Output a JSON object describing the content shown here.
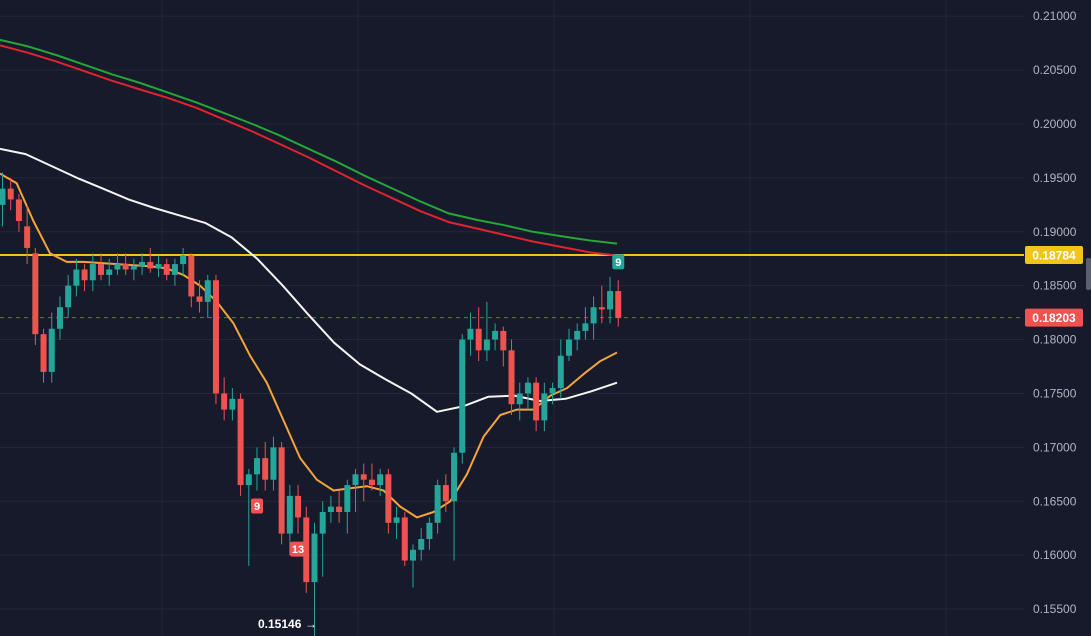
{
  "chart_data": {
    "type": "candlestick",
    "ylim": [
      0.1525,
      0.2115
    ],
    "y_ticks": [
      "0.21000",
      "0.20500",
      "0.20000",
      "0.19500",
      "0.19000",
      "0.18500",
      "0.18000",
      "0.17500",
      "0.17000",
      "0.16500",
      "0.16000",
      "0.15500"
    ],
    "y_tick_values": [
      0.21,
      0.205,
      0.2,
      0.195,
      0.19,
      0.185,
      0.18,
      0.175,
      0.17,
      0.165,
      0.16,
      0.155
    ],
    "grid": true,
    "candles": [
      [
        0.1925,
        0.1955,
        0.1905,
        0.194
      ],
      [
        0.194,
        0.195,
        0.192,
        0.193
      ],
      [
        0.193,
        0.1935,
        0.19,
        0.191
      ],
      [
        0.1905,
        0.1925,
        0.187,
        0.1885
      ],
      [
        0.188,
        0.1885,
        0.1795,
        0.1805
      ],
      [
        0.1805,
        0.181,
        0.176,
        0.177
      ],
      [
        0.177,
        0.1825,
        0.176,
        0.181
      ],
      [
        0.181,
        0.184,
        0.18,
        0.183
      ],
      [
        0.183,
        0.186,
        0.182,
        0.185
      ],
      [
        0.185,
        0.1875,
        0.184,
        0.1865
      ],
      [
        0.1865,
        0.187,
        0.1845,
        0.1855
      ],
      [
        0.1855,
        0.188,
        0.1845,
        0.187
      ],
      [
        0.187,
        0.188,
        0.1855,
        0.186
      ],
      [
        0.186,
        0.1875,
        0.185,
        0.1865
      ],
      [
        0.1865,
        0.188,
        0.186,
        0.187
      ],
      [
        0.187,
        0.188,
        0.186,
        0.1865
      ],
      [
        0.1865,
        0.1875,
        0.1855,
        0.1868
      ],
      [
        0.1868,
        0.188,
        0.186,
        0.1872
      ],
      [
        0.1872,
        0.1885,
        0.1862,
        0.1866
      ],
      [
        0.1866,
        0.1878,
        0.1858,
        0.187
      ],
      [
        0.187,
        0.1875,
        0.1855,
        0.186
      ],
      [
        0.186,
        0.1875,
        0.185,
        0.187
      ],
      [
        0.187,
        0.1885,
        0.186,
        0.1878
      ],
      [
        0.1878,
        0.188,
        0.183,
        0.184
      ],
      [
        0.184,
        0.1855,
        0.1825,
        0.1835
      ],
      [
        0.1835,
        0.186,
        0.182,
        0.1855
      ],
      [
        0.1855,
        0.186,
        0.174,
        0.175
      ],
      [
        0.175,
        0.1765,
        0.1725,
        0.1735
      ],
      [
        0.1735,
        0.1755,
        0.1725,
        0.1745
      ],
      [
        0.1745,
        0.175,
        0.1655,
        0.1665
      ],
      [
        0.1665,
        0.168,
        0.159,
        0.1675
      ],
      [
        0.1675,
        0.17,
        0.166,
        0.169
      ],
      [
        0.169,
        0.1705,
        0.166,
        0.167
      ],
      [
        0.167,
        0.171,
        0.166,
        0.17
      ],
      [
        0.17,
        0.1705,
        0.161,
        0.162
      ],
      [
        0.162,
        0.1665,
        0.16,
        0.1655
      ],
      [
        0.1655,
        0.1665,
        0.162,
        0.1635
      ],
      [
        0.1635,
        0.1645,
        0.1565,
        0.1575
      ],
      [
        0.1575,
        0.163,
        0.152,
        0.162
      ],
      [
        0.162,
        0.165,
        0.158,
        0.164
      ],
      [
        0.164,
        0.1655,
        0.163,
        0.1645
      ],
      [
        0.1645,
        0.166,
        0.163,
        0.164
      ],
      [
        0.164,
        0.167,
        0.162,
        0.1665
      ],
      [
        0.1665,
        0.168,
        0.164,
        0.1675
      ],
      [
        0.1675,
        0.1685,
        0.165,
        0.167
      ],
      [
        0.167,
        0.1685,
        0.166,
        0.1665
      ],
      [
        0.1665,
        0.168,
        0.1655,
        0.1675
      ],
      [
        0.1675,
        0.168,
        0.162,
        0.163
      ],
      [
        0.163,
        0.1645,
        0.1615,
        0.1635
      ],
      [
        0.1635,
        0.164,
        0.159,
        0.1595
      ],
      [
        0.1595,
        0.161,
        0.157,
        0.1605
      ],
      [
        0.1605,
        0.1625,
        0.1595,
        0.1615
      ],
      [
        0.1615,
        0.1635,
        0.1605,
        0.163
      ],
      [
        0.163,
        0.167,
        0.162,
        0.1665
      ],
      [
        0.1665,
        0.1675,
        0.164,
        0.165
      ],
      [
        0.165,
        0.17,
        0.1595,
        0.1695
      ],
      [
        0.1695,
        0.1805,
        0.1685,
        0.18
      ],
      [
        0.18,
        0.1825,
        0.1785,
        0.181
      ],
      [
        0.181,
        0.183,
        0.178,
        0.179
      ],
      [
        0.179,
        0.1835,
        0.178,
        0.18
      ],
      [
        0.18,
        0.1815,
        0.179,
        0.1808
      ],
      [
        0.1808,
        0.1812,
        0.1775,
        0.179
      ],
      [
        0.179,
        0.18,
        0.173,
        0.174
      ],
      [
        0.174,
        0.176,
        0.1725,
        0.175
      ],
      [
        0.175,
        0.1765,
        0.1735,
        0.176
      ],
      [
        0.176,
        0.1765,
        0.1715,
        0.1725
      ],
      [
        0.1725,
        0.176,
        0.1715,
        0.175
      ],
      [
        0.175,
        0.176,
        0.174,
        0.1755
      ],
      [
        0.1755,
        0.18,
        0.1745,
        0.1785
      ],
      [
        0.1785,
        0.181,
        0.178,
        0.18
      ],
      [
        0.18,
        0.1815,
        0.179,
        0.1808
      ],
      [
        0.1808,
        0.183,
        0.18,
        0.1815
      ],
      [
        0.1815,
        0.184,
        0.18,
        0.183
      ],
      [
        0.183,
        0.185,
        0.1815,
        0.1828
      ],
      [
        0.1828,
        0.1858,
        0.1815,
        0.1845
      ],
      [
        0.1845,
        0.1855,
        0.1812,
        0.182
      ]
    ],
    "series": [
      {
        "color": "#26a637",
        "values": [
          0.2078,
          0.2072,
          0.2064,
          0.2055,
          0.2046,
          0.2038,
          0.2029,
          0.202,
          0.201,
          0.2,
          0.1989,
          0.1977,
          0.1965,
          0.1952,
          0.194,
          0.1928,
          0.1917,
          0.1911,
          0.1906,
          0.19,
          0.1896,
          0.1892,
          0.1889
        ]
      },
      {
        "color": "#e0242f",
        "values": [
          0.2073,
          0.2066,
          0.2058,
          0.2049,
          0.204,
          0.2032,
          0.2024,
          0.2015,
          0.2004,
          0.1993,
          0.1981,
          0.1969,
          0.1956,
          0.1943,
          0.1931,
          0.1919,
          0.1909,
          0.1903,
          0.1897,
          0.1891,
          0.1886,
          0.1881,
          0.1878
        ]
      },
      {
        "color": "#f5f5f5",
        "values": [
          0.1977,
          0.1972,
          0.1961,
          0.195,
          0.194,
          0.193,
          0.1922,
          0.1915,
          0.1908,
          0.1895,
          0.1875,
          0.185,
          0.1823,
          0.1797,
          0.1777,
          0.1763,
          0.175,
          0.1733,
          0.1738,
          0.1747,
          0.1748,
          0.1743,
          0.1745,
          0.1752,
          0.176
        ]
      },
      {
        "color": "#f6a43a",
        "values": [
          0.1954,
          0.1945,
          0.191,
          0.188,
          0.1872,
          0.1872,
          0.1871,
          0.187,
          0.1869,
          0.1868,
          0.1866,
          0.186,
          0.185,
          0.1835,
          0.1815,
          0.1785,
          0.176,
          0.1725,
          0.169,
          0.167,
          0.166,
          0.1662,
          0.1664,
          0.166,
          0.1645,
          0.1635,
          0.164,
          0.165,
          0.1675,
          0.171,
          0.173,
          0.1735,
          0.1735,
          0.1748,
          0.1755,
          0.1768,
          0.178,
          0.1788
        ]
      }
    ],
    "current_price": "0.18203",
    "level_price": "0.18784",
    "level_value": 0.18784,
    "current_value": 0.18203,
    "markers": [
      {
        "text": "9",
        "candle": 75
      },
      {
        "text": "9",
        "candle": 31
      },
      {
        "text": "13",
        "candle": 36
      }
    ],
    "low_label": "0.15146",
    "low_arrow": "→",
    "low_value": 0.15146,
    "colors": {
      "up": "#26a69a",
      "down": "#ef5350",
      "level": "#f0c419",
      "background": "#161a2b",
      "grid": "#232838"
    }
  }
}
